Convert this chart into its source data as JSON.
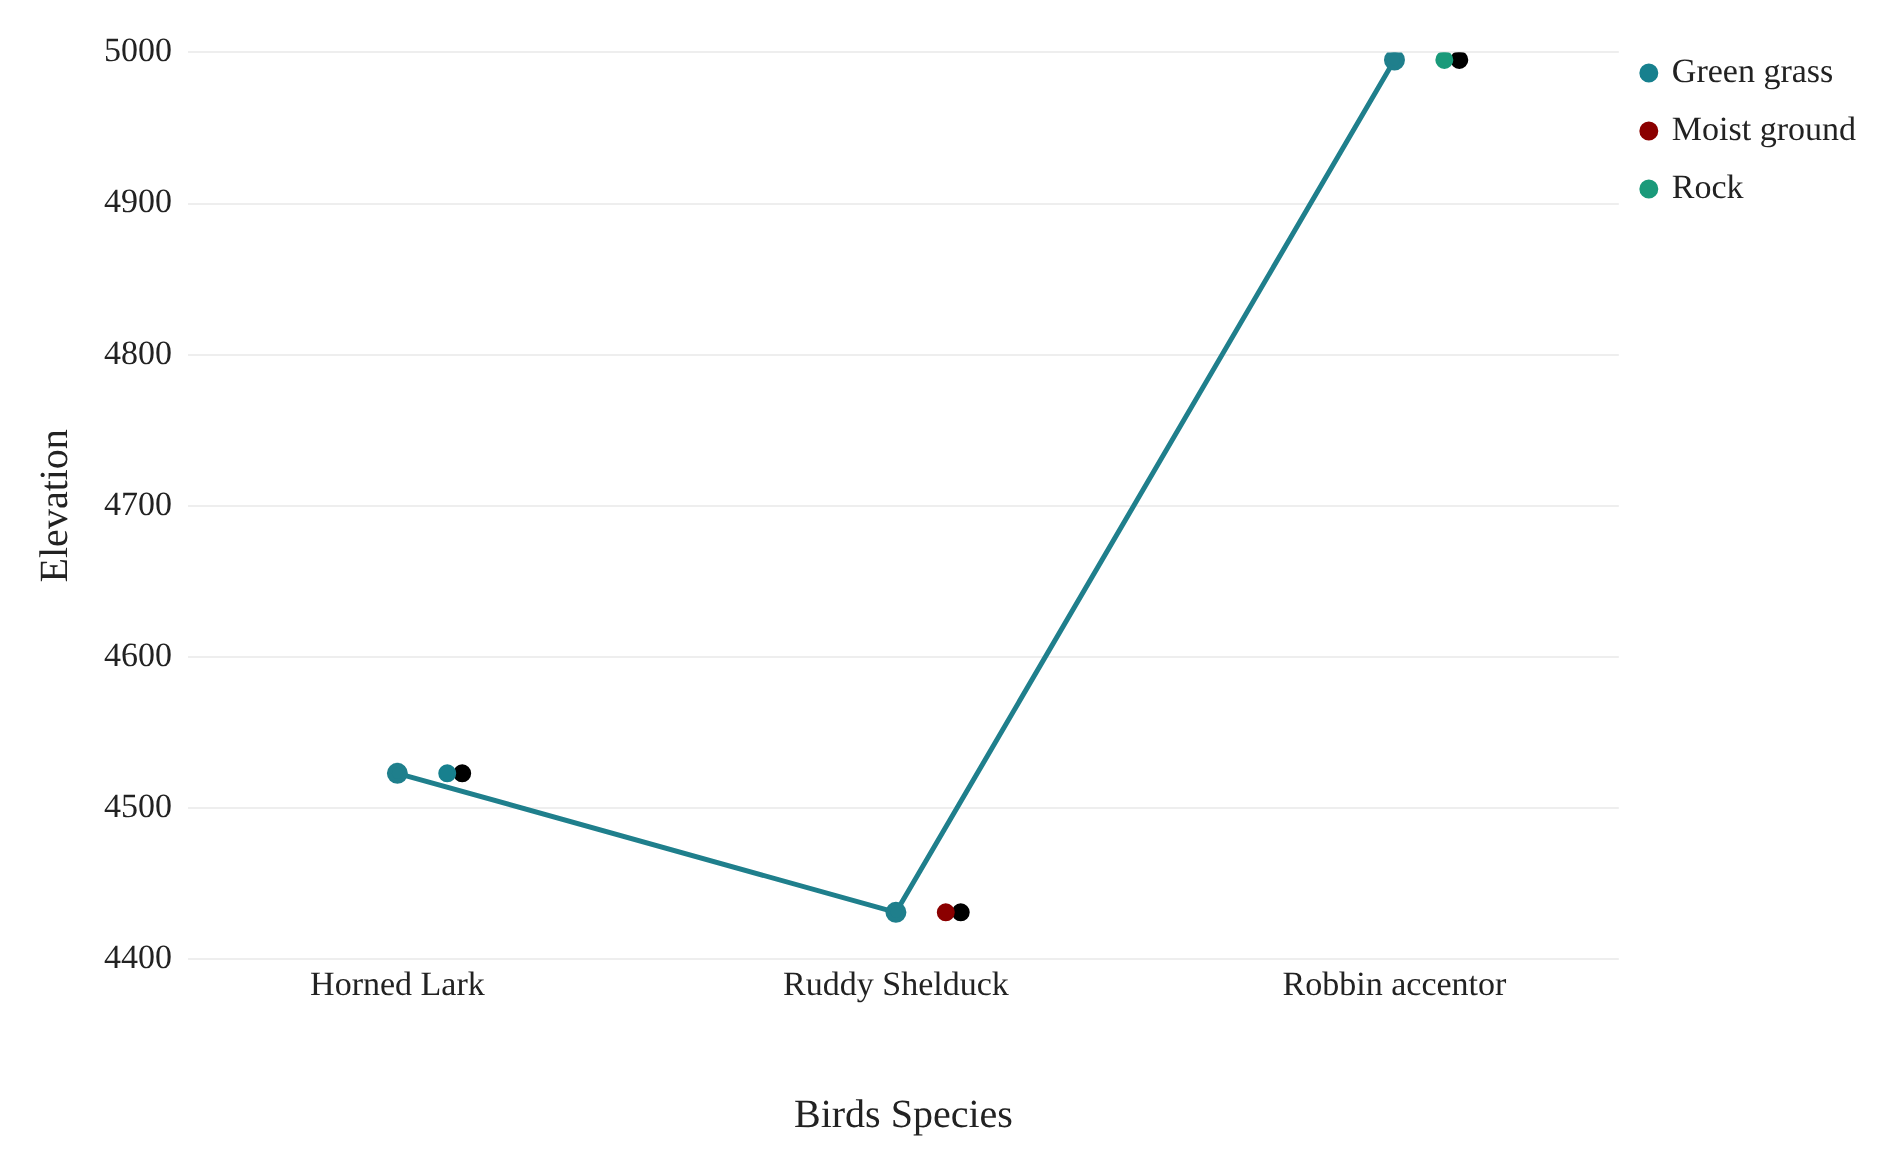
{
  "chart_data": {
    "type": "scatter",
    "xlabel": "Birds Species",
    "ylabel": "Elevation",
    "categories": [
      "Horned Lark",
      "Ruddy Shelduck",
      "Robbin accentor"
    ],
    "series": [
      {
        "type": "line",
        "color": "#1f7f8c",
        "values": [
          4523,
          4431,
          4995
        ]
      },
      {
        "name": "Green grass",
        "color": "#17808e",
        "values": [
          4523,
          null,
          null
        ]
      },
      {
        "name": "Moist ground",
        "color": "#8b0000",
        "values": [
          null,
          4431,
          null
        ]
      },
      {
        "name": "Rock",
        "color": "#1a9a7a",
        "values": [
          null,
          null,
          4995
        ]
      },
      {
        "color": "#000000",
        "values": [
          4523,
          4431,
          4995
        ]
      }
    ],
    "ylim": [
      4400,
      5000
    ],
    "yticks": [
      4400,
      4500,
      4600,
      4700,
      4800,
      4900,
      5000
    ],
    "grid": "y",
    "legend": "top right",
    "marker": "circle"
  }
}
